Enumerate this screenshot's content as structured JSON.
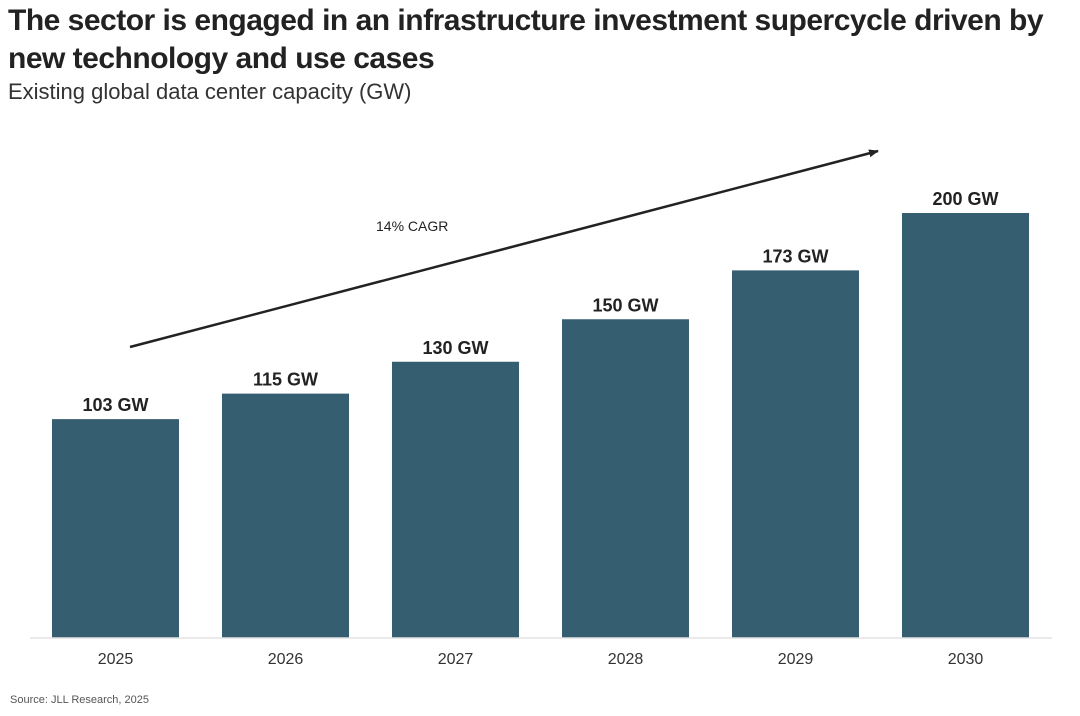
{
  "title": "The sector is engaged in an infrastructure investment supercycle driven by new technology and use cases",
  "subtitle": "Existing global data center capacity (GW)",
  "source": "Source: JLL Research, 2025",
  "colors": {
    "bar": "#355e70",
    "baseline": "#e3e3e3",
    "arrow": "#222222"
  },
  "chart_data": {
    "type": "bar",
    "categories": [
      "2025",
      "2026",
      "2027",
      "2028",
      "2029",
      "2030"
    ],
    "values": [
      103,
      115,
      130,
      150,
      173,
      200
    ],
    "data_labels": [
      "103 GW",
      "115 GW",
      "130 GW",
      "150 GW",
      "173 GW",
      "200 GW"
    ],
    "title": "Existing global data center capacity (GW)",
    "xlabel": "",
    "ylabel": "",
    "ylim": [
      0,
      200
    ],
    "grid": false,
    "legend": "none",
    "annotations": [
      {
        "text": "14% CAGR",
        "type": "arrow"
      }
    ]
  }
}
